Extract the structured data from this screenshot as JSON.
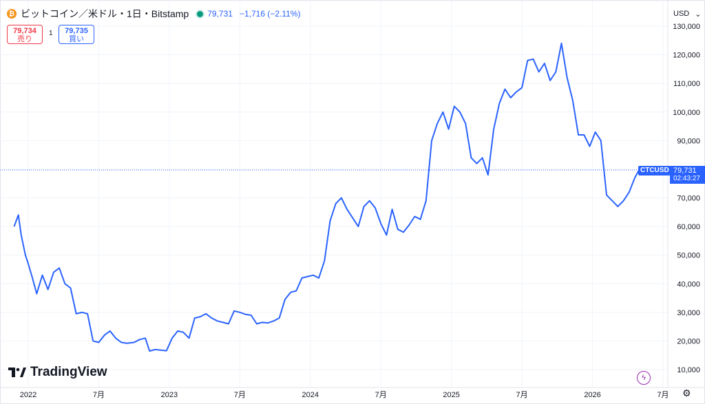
{
  "header": {
    "coin_icon": "bitcoin-icon",
    "title": "ビットコイン／米ドル・1日・Bitstamp",
    "price": "79,731",
    "change": "−1,716 (−2.11%)"
  },
  "quote": {
    "sell_value": "79,734",
    "sell_label": "売り",
    "spread": "1",
    "buy_value": "79,735",
    "buy_label": "買い"
  },
  "currency": {
    "label": "USD",
    "arrow": "⌄"
  },
  "logo_text": "TradingView",
  "price_tag": {
    "symbol": "CTCUSD",
    "value": "79,731",
    "countdown": "02:43:27"
  },
  "colors": {
    "line": "#2962ff",
    "grid": "#f0f3fa",
    "up": "#089981",
    "down": "#f23645"
  },
  "chart_data": {
    "type": "line",
    "title": "ビットコイン／米ドル・1日・Bitstamp",
    "xlabel": "",
    "ylabel": "",
    "x_ticks": [
      "2022",
      "7月",
      "2023",
      "7月",
      "2024",
      "7月",
      "2025",
      "7月",
      "2026",
      "7月"
    ],
    "y_ticks": [
      10000,
      20000,
      30000,
      40000,
      50000,
      60000,
      70000,
      80000,
      90000,
      100000,
      110000,
      120000,
      130000
    ],
    "y_tick_labels": [
      "10,000",
      "20,000",
      "30,000",
      "40,000",
      "50,000",
      "60,000",
      "70,000",
      "80,000",
      "90,000",
      "100,000",
      "110,000",
      "120,000",
      "130,000"
    ],
    "ylim": [
      7000,
      132000
    ],
    "grid": true,
    "last_price": 79731,
    "series": [
      {
        "values": [
          [
            2021.9,
            60000
          ],
          [
            2021.93,
            64000
          ],
          [
            2021.95,
            57000
          ],
          [
            2021.98,
            50000
          ],
          [
            2022.0,
            47000
          ],
          [
            2022.03,
            42000
          ],
          [
            2022.06,
            36500
          ],
          [
            2022.1,
            43000
          ],
          [
            2022.14,
            38000
          ],
          [
            2022.18,
            44000
          ],
          [
            2022.22,
            45500
          ],
          [
            2022.26,
            40000
          ],
          [
            2022.3,
            38500
          ],
          [
            2022.34,
            29500
          ],
          [
            2022.38,
            30000
          ],
          [
            2022.42,
            29500
          ],
          [
            2022.46,
            20000
          ],
          [
            2022.5,
            19500
          ],
          [
            2022.54,
            22000
          ],
          [
            2022.58,
            23500
          ],
          [
            2022.62,
            21000
          ],
          [
            2022.66,
            19500
          ],
          [
            2022.7,
            19200
          ],
          [
            2022.75,
            19500
          ],
          [
            2022.79,
            20500
          ],
          [
            2022.83,
            21000
          ],
          [
            2022.86,
            16500
          ],
          [
            2022.9,
            17000
          ],
          [
            2022.94,
            16800
          ],
          [
            2022.98,
            16600
          ],
          [
            2023.02,
            21000
          ],
          [
            2023.06,
            23500
          ],
          [
            2023.1,
            23000
          ],
          [
            2023.14,
            21000
          ],
          [
            2023.18,
            28000
          ],
          [
            2023.22,
            28500
          ],
          [
            2023.26,
            29500
          ],
          [
            2023.3,
            28000
          ],
          [
            2023.34,
            27000
          ],
          [
            2023.38,
            26500
          ],
          [
            2023.42,
            26000
          ],
          [
            2023.46,
            30500
          ],
          [
            2023.5,
            30000
          ],
          [
            2023.54,
            29300
          ],
          [
            2023.58,
            29000
          ],
          [
            2023.62,
            26000
          ],
          [
            2023.66,
            26500
          ],
          [
            2023.7,
            26300
          ],
          [
            2023.74,
            27000
          ],
          [
            2023.78,
            28000
          ],
          [
            2023.82,
            34500
          ],
          [
            2023.86,
            37000
          ],
          [
            2023.9,
            37500
          ],
          [
            2023.94,
            42000
          ],
          [
            2023.98,
            42500
          ],
          [
            2024.02,
            43000
          ],
          [
            2024.06,
            42000
          ],
          [
            2024.1,
            48000
          ],
          [
            2024.14,
            62000
          ],
          [
            2024.18,
            68000
          ],
          [
            2024.22,
            70000
          ],
          [
            2024.26,
            66000
          ],
          [
            2024.3,
            63000
          ],
          [
            2024.34,
            60000
          ],
          [
            2024.38,
            67000
          ],
          [
            2024.42,
            69000
          ],
          [
            2024.46,
            66500
          ],
          [
            2024.5,
            61000
          ],
          [
            2024.54,
            57000
          ],
          [
            2024.58,
            66000
          ],
          [
            2024.62,
            59000
          ],
          [
            2024.66,
            58000
          ],
          [
            2024.7,
            60500
          ],
          [
            2024.74,
            63500
          ],
          [
            2024.78,
            62500
          ],
          [
            2024.82,
            69000
          ],
          [
            2024.86,
            90000
          ],
          [
            2024.9,
            96000
          ],
          [
            2024.94,
            100000
          ],
          [
            2024.98,
            94000
          ],
          [
            2025.02,
            102000
          ],
          [
            2025.06,
            100000
          ],
          [
            2025.1,
            96000
          ],
          [
            2025.14,
            84000
          ],
          [
            2025.18,
            82000
          ],
          [
            2025.22,
            84000
          ],
          [
            2025.26,
            78000
          ],
          [
            2025.3,
            94000
          ],
          [
            2025.34,
            103000
          ],
          [
            2025.38,
            108000
          ],
          [
            2025.42,
            105000
          ],
          [
            2025.46,
            107000
          ],
          [
            2025.5,
            108500
          ],
          [
            2025.54,
            118000
          ],
          [
            2025.58,
            118500
          ],
          [
            2025.62,
            114000
          ],
          [
            2025.66,
            117000
          ],
          [
            2025.7,
            111000
          ],
          [
            2025.74,
            114000
          ],
          [
            2025.78,
            124000
          ],
          [
            2025.82,
            112000
          ],
          [
            2025.86,
            104000
          ],
          [
            2025.9,
            92000
          ],
          [
            2025.94,
            92000
          ],
          [
            2025.98,
            88000
          ],
          [
            2026.02,
            93000
          ],
          [
            2026.06,
            90000
          ],
          [
            2026.1,
            71000
          ],
          [
            2026.14,
            69000
          ],
          [
            2026.18,
            67000
          ],
          [
            2026.22,
            69000
          ],
          [
            2026.26,
            72000
          ],
          [
            2026.3,
            77000
          ],
          [
            2026.33,
            79731
          ]
        ]
      }
    ]
  }
}
